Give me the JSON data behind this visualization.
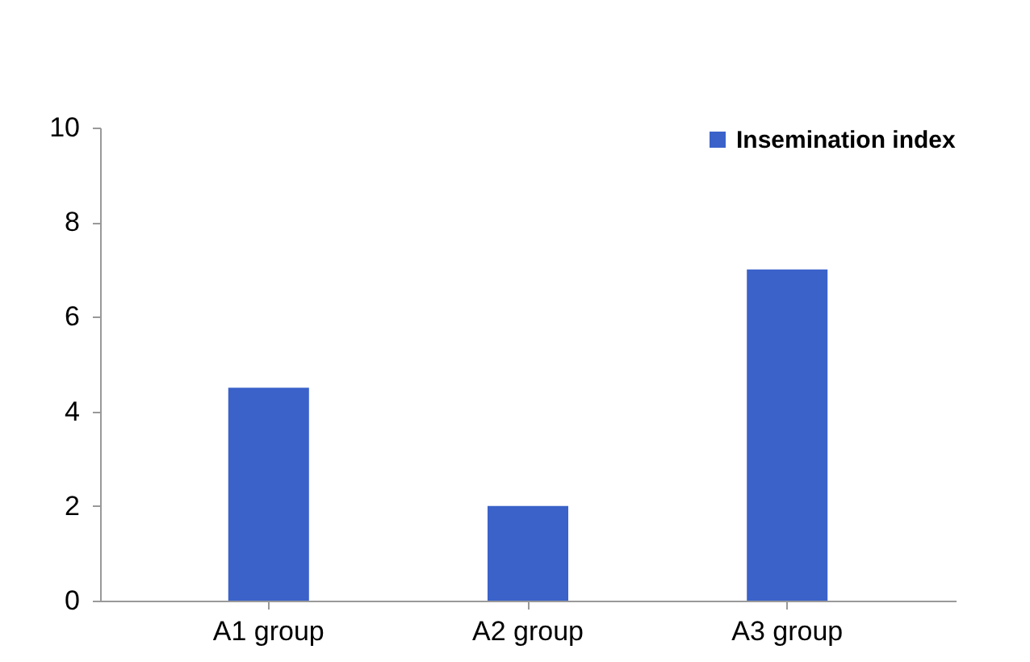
{
  "chart_data": {
    "type": "bar",
    "categories": [
      "A1 group",
      "A2 group",
      "A3 group"
    ],
    "series": [
      {
        "name": "Insemination index",
        "color": "#3a62c9",
        "values": [
          4.5,
          2.0,
          7.0
        ]
      }
    ],
    "ylim": [
      0,
      10
    ],
    "yticks": [
      0,
      2,
      4,
      6,
      8,
      10
    ],
    "grid": false,
    "legend": "top right"
  }
}
